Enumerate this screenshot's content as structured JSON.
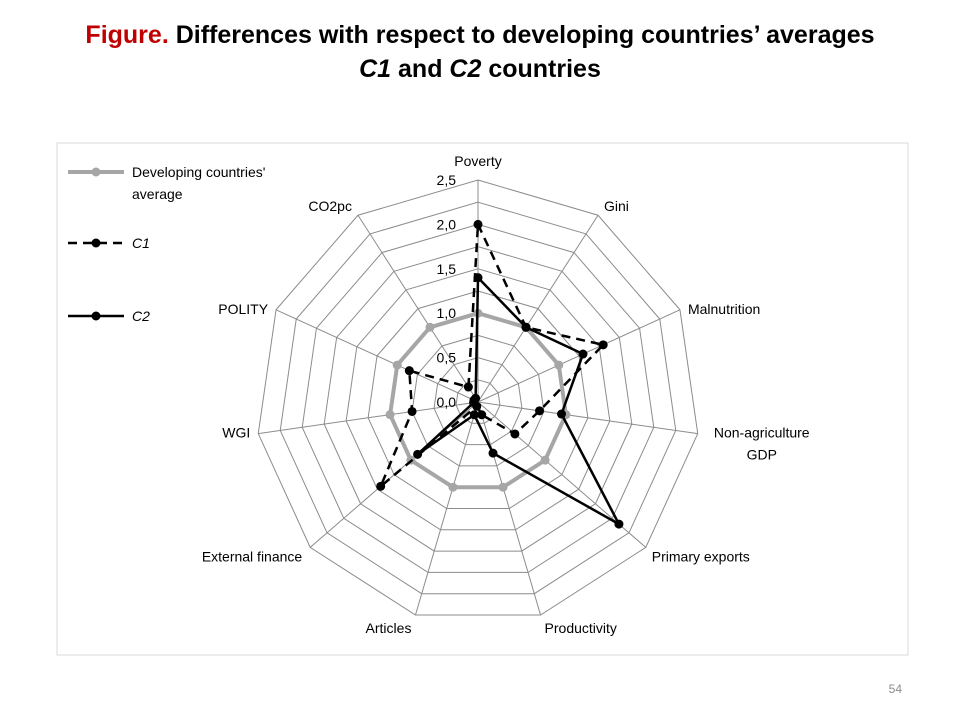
{
  "slide": {
    "title_prefix": "Figure.",
    "title_main": " Differences with respect to developing countries’ averages",
    "title_line2_c1": "C1",
    "title_line2_and": " and ",
    "title_line2_c2": "C2",
    "title_line2_suffix": " countries",
    "page_number": "54"
  },
  "chart_data": {
    "type": "radar",
    "axes": [
      "Poverty",
      "Gini",
      "Malnutrition",
      "Non-agriculture GDP",
      "Primary exports",
      "Productivity",
      "Articles",
      "External finance",
      "WGI",
      "POLITY",
      "CO2pc"
    ],
    "ticks": [
      "0,0",
      "0,5",
      "1,0",
      "1,5",
      "2,0",
      "2,5"
    ],
    "rlim": [
      0,
      2.5
    ],
    "series": [
      {
        "name": "Developing countries' average",
        "values": [
          1,
          1,
          1,
          1,
          1,
          1,
          1,
          1,
          1,
          1,
          1
        ],
        "color": "#a6a6a6",
        "style": "solid"
      },
      {
        "name": "C1",
        "values": [
          2.0,
          1.0,
          1.55,
          0.7,
          0.55,
          0.15,
          0.05,
          1.45,
          0.75,
          0.85,
          0.2
        ],
        "color": "#000000",
        "style": "dashed"
      },
      {
        "name": "C2",
        "values": [
          1.4,
          1.0,
          1.3,
          0.95,
          2.1,
          0.6,
          0.15,
          0.9,
          0.05,
          0.05,
          0.05
        ],
        "color": "#000000",
        "style": "solid"
      }
    ],
    "legend_position": "left"
  }
}
